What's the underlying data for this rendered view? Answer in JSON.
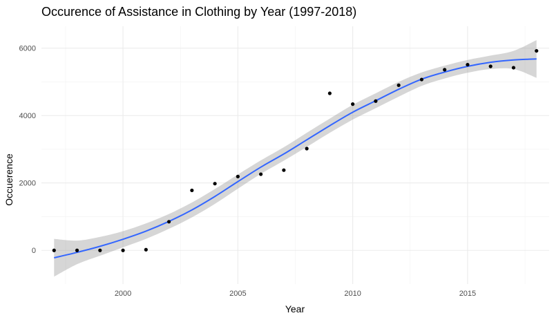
{
  "chart_data": {
    "type": "scatter",
    "title": "Occurence of Assistance in Clothing by Year (1997-2018)",
    "xlabel": "Year",
    "ylabel": "Occuerence",
    "xlim": [
      1996.45,
      2018.55
    ],
    "ylim": [
      -1000,
      6650
    ],
    "x_ticks": [
      2000,
      2005,
      2010,
      2015
    ],
    "y_ticks": [
      0,
      2000,
      4000,
      6000
    ],
    "x_tick_labels": [
      "2000",
      "2005",
      "2010",
      "2015"
    ],
    "y_tick_labels": [
      "0",
      "2000",
      "4000",
      "6000"
    ],
    "grid": true,
    "legend": "none",
    "colors": {
      "points": "#000000",
      "trend": "#3366ff",
      "band": "#999999"
    },
    "points": [
      {
        "x": 1997,
        "y": 0
      },
      {
        "x": 1998,
        "y": 0
      },
      {
        "x": 1999,
        "y": 0
      },
      {
        "x": 2000,
        "y": 0
      },
      {
        "x": 2001,
        "y": 20
      },
      {
        "x": 2002,
        "y": 850
      },
      {
        "x": 2003,
        "y": 1780
      },
      {
        "x": 2004,
        "y": 1980
      },
      {
        "x": 2005,
        "y": 2190
      },
      {
        "x": 2006,
        "y": 2260
      },
      {
        "x": 2007,
        "y": 2380
      },
      {
        "x": 2008,
        "y": 3020
      },
      {
        "x": 2009,
        "y": 4660
      },
      {
        "x": 2010,
        "y": 4340
      },
      {
        "x": 2011,
        "y": 4430
      },
      {
        "x": 2012,
        "y": 4900
      },
      {
        "x": 2013,
        "y": 5070
      },
      {
        "x": 2014,
        "y": 5360
      },
      {
        "x": 2015,
        "y": 5510
      },
      {
        "x": 2016,
        "y": 5460
      },
      {
        "x": 2017,
        "y": 5420
      },
      {
        "x": 2018,
        "y": 5920
      }
    ],
    "trend": {
      "x": [
        1997,
        1998,
        1999,
        2000,
        2001,
        2002,
        2003,
        2004,
        2005,
        2006,
        2007,
        2008,
        2009,
        2010,
        2011,
        2012,
        2013,
        2014,
        2015,
        2016,
        2017,
        2018
      ],
      "y": [
        -220,
        -60,
        120,
        330,
        570,
        860,
        1200,
        1600,
        2040,
        2470,
        2860,
        3280,
        3700,
        4100,
        4440,
        4780,
        5080,
        5290,
        5460,
        5580,
        5650,
        5680
      ],
      "lower": [
        -780,
        -410,
        -160,
        90,
        340,
        640,
        980,
        1380,
        1830,
        2270,
        2660,
        3070,
        3490,
        3880,
        4220,
        4560,
        4880,
        5100,
        5270,
        5380,
        5380,
        5120
      ],
      "upper": [
        340,
        290,
        400,
        570,
        800,
        1080,
        1420,
        1820,
        2250,
        2670,
        3060,
        3490,
        3910,
        4320,
        4660,
        5000,
        5280,
        5480,
        5650,
        5780,
        5920,
        6240
      ]
    }
  }
}
